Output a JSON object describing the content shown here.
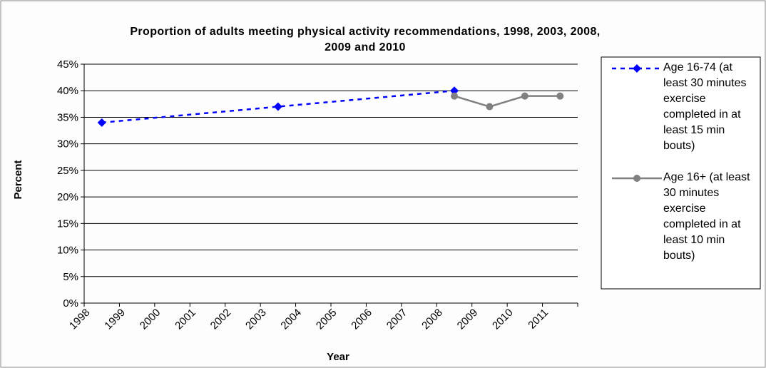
{
  "chart_data": {
    "type": "line",
    "title": "Proportion of adults meeting physical activity recommendations, 1998, 2003, 2008, 2009 and 2010",
    "x_label": "Year",
    "y_label": "Percent",
    "xlim": [
      1997.5,
      2011.5
    ],
    "xticks": [
      1998,
      1999,
      2000,
      2001,
      2002,
      2003,
      2004,
      2005,
      2006,
      2007,
      2008,
      2009,
      2010,
      2011
    ],
    "ylim": [
      0,
      45
    ],
    "yticks": [
      {
        "value": 0,
        "label": "0%"
      },
      {
        "value": 5,
        "label": "5%"
      },
      {
        "value": 10,
        "label": "10%"
      },
      {
        "value": 15,
        "label": "15%"
      },
      {
        "value": 20,
        "label": "20%"
      },
      {
        "value": 25,
        "label": "25%"
      },
      {
        "value": 30,
        "label": "30%"
      },
      {
        "value": 35,
        "label": "35%"
      },
      {
        "value": 40,
        "label": "40%"
      },
      {
        "value": 45,
        "label": "45%"
      }
    ],
    "grid": true,
    "series": [
      {
        "name": "Age 16-74 (at least 30 minutes exercise completed in at least 15 min bouts)",
        "color": "#0000ff",
        "dash": true,
        "marker": "diamond",
        "x": [
          1998,
          2003,
          2008
        ],
        "values": [
          34,
          37,
          40
        ]
      },
      {
        "name": "Age 16+ (at least 30 minutes exercise completed in at least 10 min bouts)",
        "color": "#808080",
        "dash": false,
        "marker": "circle",
        "x": [
          2008,
          2009,
          2010,
          2011
        ],
        "values": [
          39,
          37,
          39,
          39
        ]
      }
    ]
  }
}
